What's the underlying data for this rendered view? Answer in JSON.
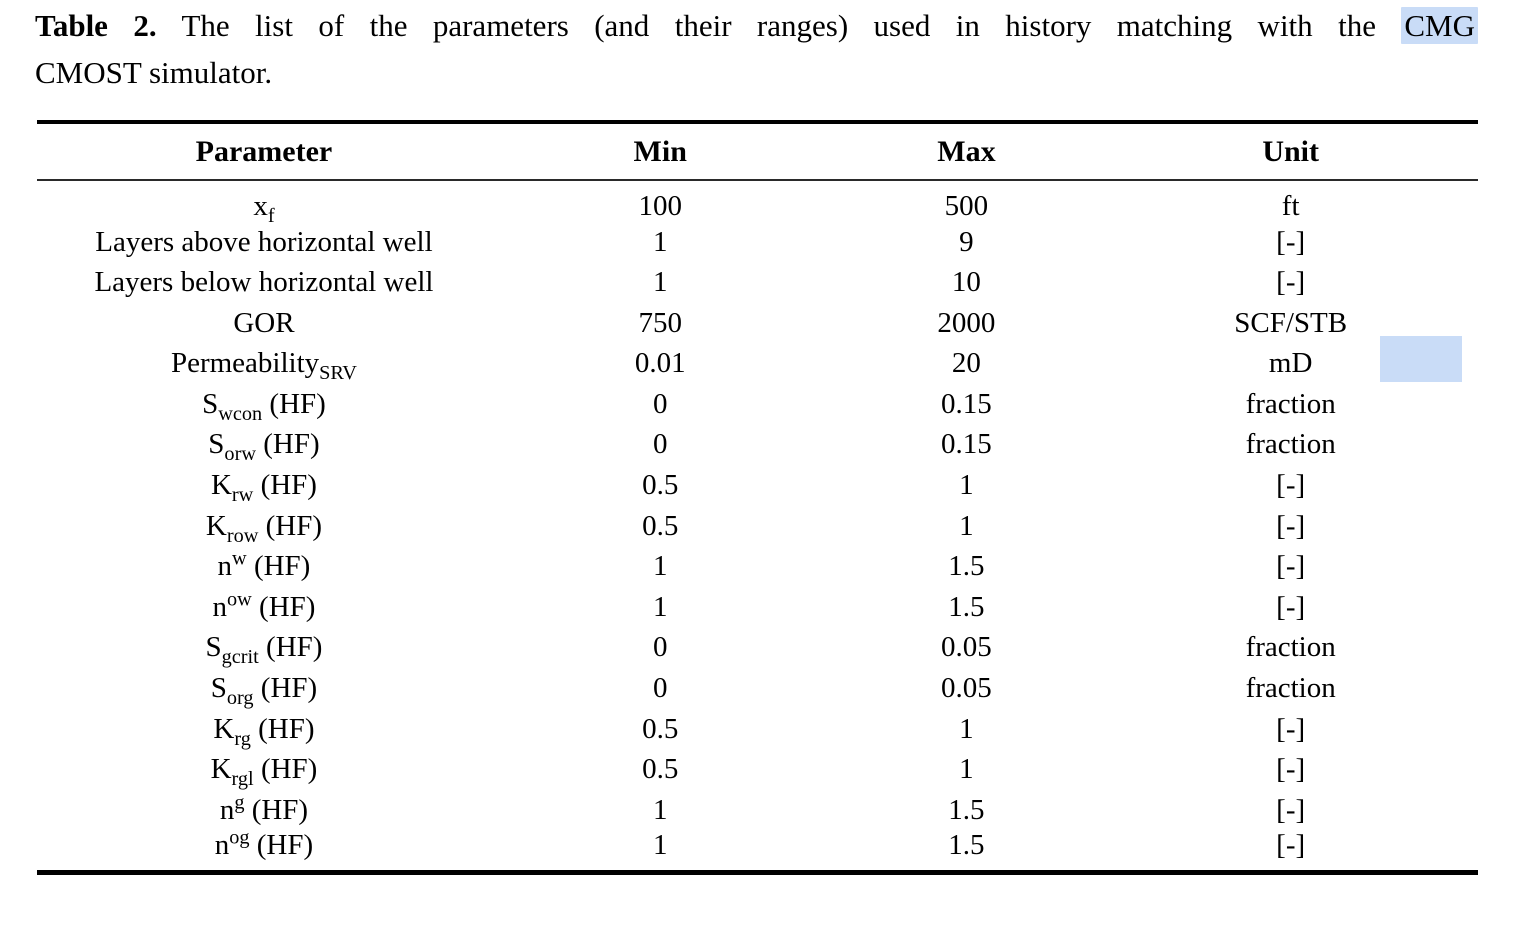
{
  "caption": {
    "label": "Table 2.",
    "body": "The list of the parameters (and their ranges) used in history matching with the",
    "highlighted": "CMG",
    "line2": "CMOST simulator.",
    "highlight_color": "#c9dcf7"
  },
  "table": {
    "headers": [
      "Parameter",
      "Min",
      "Max",
      "Unit"
    ],
    "rows": [
      {
        "base": "x",
        "sub": "f",
        "sup": "",
        "suffix": "",
        "min": "100",
        "max": "500",
        "unit": "ft"
      },
      {
        "base": "Layers above horizontal well",
        "sub": "",
        "sup": "",
        "suffix": "",
        "min": "1",
        "max": "9",
        "unit": "[-]"
      },
      {
        "base": "Layers below horizontal well",
        "sub": "",
        "sup": "",
        "suffix": "",
        "min": "1",
        "max": "10",
        "unit": "[-]"
      },
      {
        "base": "GOR",
        "sub": "",
        "sup": "",
        "suffix": "",
        "min": "750",
        "max": "2000",
        "unit": "SCF/STB"
      },
      {
        "base": "Permeability",
        "sub": "SRV",
        "sup": "",
        "suffix": "",
        "min": "0.01",
        "max": "20",
        "unit": "mD"
      },
      {
        "base": "S",
        "sub": "wcon",
        "sup": "",
        "suffix": " (HF)",
        "min": "0",
        "max": "0.15",
        "unit": "fraction"
      },
      {
        "base": "S",
        "sub": "orw",
        "sup": "",
        "suffix": " (HF)",
        "min": "0",
        "max": "0.15",
        "unit": "fraction"
      },
      {
        "base": "K",
        "sub": "rw",
        "sup": "",
        "suffix": " (HF)",
        "min": "0.5",
        "max": "1",
        "unit": "[-]"
      },
      {
        "base": "K",
        "sub": "row",
        "sup": "",
        "suffix": " (HF)",
        "min": "0.5",
        "max": "1",
        "unit": "[-]"
      },
      {
        "base": "n",
        "sub": "",
        "sup": "w",
        "suffix": " (HF)",
        "min": "1",
        "max": "1.5",
        "unit": "[-]"
      },
      {
        "base": "n",
        "sub": "",
        "sup": "ow",
        "suffix": " (HF)",
        "min": "1",
        "max": "1.5",
        "unit": "[-]"
      },
      {
        "base": "S",
        "sub": "gcrit",
        "sup": "",
        "suffix": " (HF)",
        "min": "0",
        "max": "0.05",
        "unit": "fraction"
      },
      {
        "base": "S",
        "sub": "org",
        "sup": "",
        "suffix": " (HF)",
        "min": "0",
        "max": "0.05",
        "unit": "fraction"
      },
      {
        "base": "K",
        "sub": "rg",
        "sup": "",
        "suffix": " (HF)",
        "min": "0.5",
        "max": "1",
        "unit": "[-]"
      },
      {
        "base": "K",
        "sub": "rgl",
        "sup": "",
        "suffix": " (HF)",
        "min": "0.5",
        "max": "1",
        "unit": "[-]"
      },
      {
        "base": "n",
        "sub": "",
        "sup": "g",
        "suffix": " (HF)",
        "min": "1",
        "max": "1.5",
        "unit": "[-]"
      },
      {
        "base": "n",
        "sub": "",
        "sup": "og",
        "suffix": " (HF)",
        "min": "1",
        "max": "1.5",
        "unit": "[-]"
      }
    ]
  },
  "annotation": {
    "color": "#c9dcf7"
  }
}
